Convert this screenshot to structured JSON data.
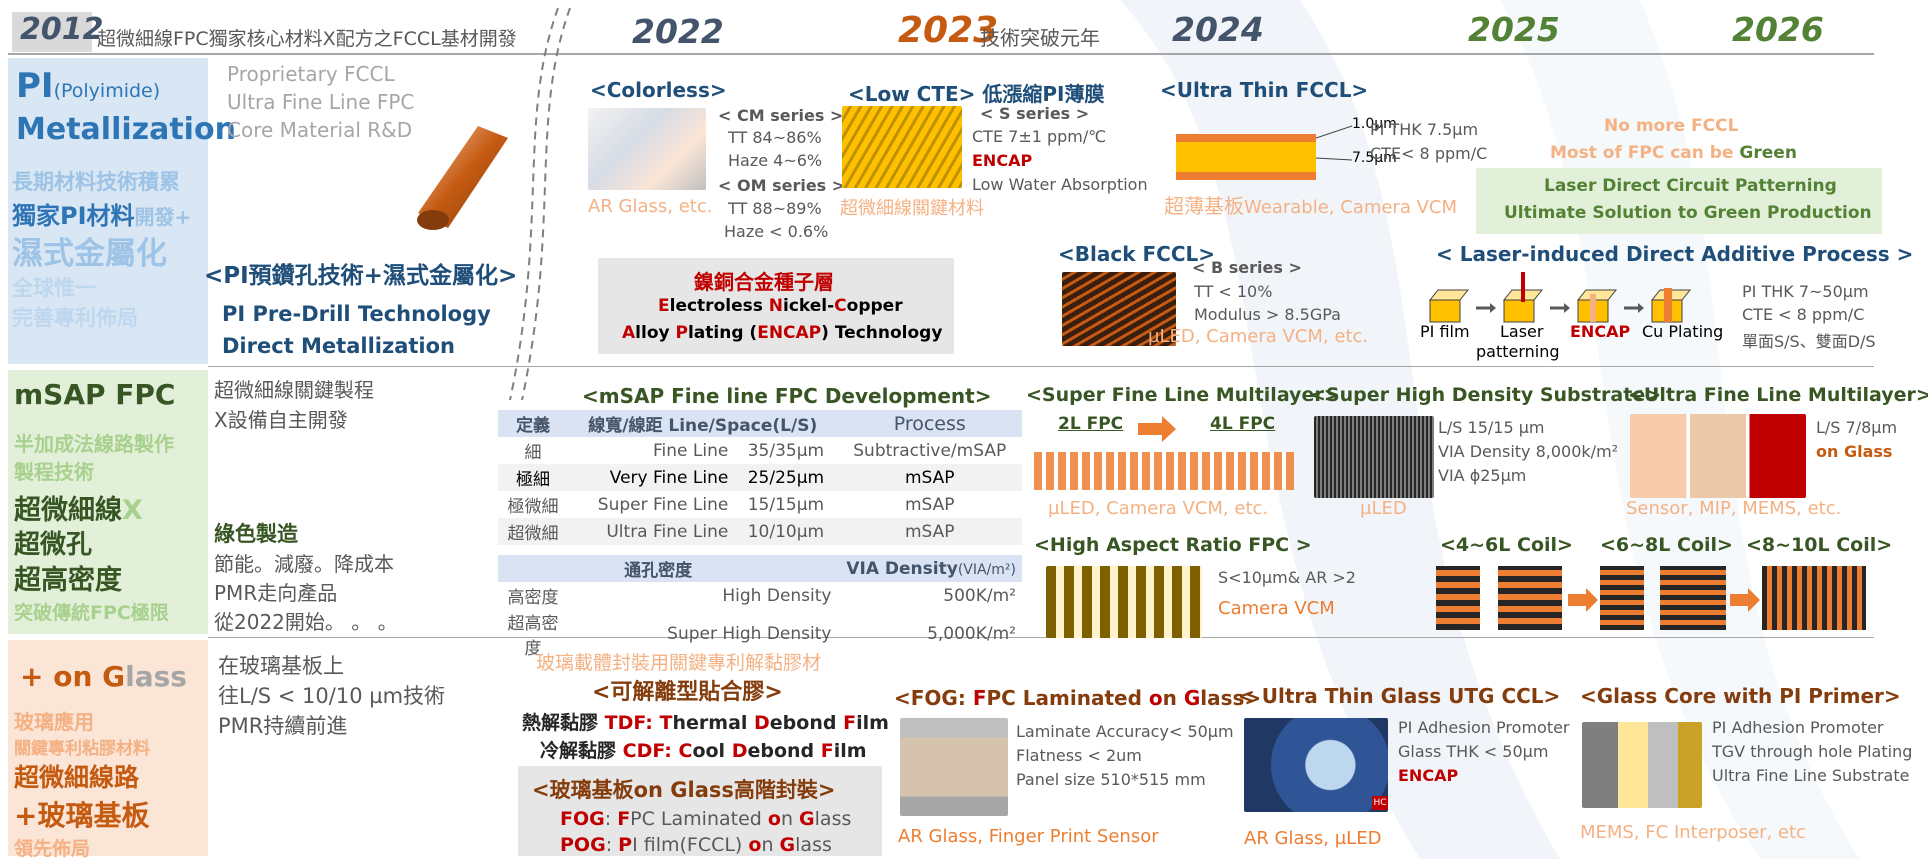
{
  "header": {
    "y2012_year": "2012",
    "y2012_text": "超微細線FPC獨家核心材料X配方之FCCL基材開發",
    "y2022": "2022",
    "y2023": "2023",
    "y2023_suffix": "技術突破元年",
    "y2024": "2024",
    "y2025": "2025",
    "y2026": "2026"
  },
  "pi_band": {
    "title_pi": "PI",
    "title_sub": "(Polyimide)",
    "title_metal": "Metallization",
    "line1": "長期材料技術積累",
    "line2a": "獨家PI材料",
    "line2b": "開發+",
    "line3": "濕式金屬化",
    "line4": "全球惟一",
    "line5": "完善專利佈局",
    "rd1": "Proprietary FCCL",
    "rd2": "Ultra Fine Line FPC",
    "rd3": "Core Material R&D",
    "predrill_title": "<PI預鑽孔技術+濕式金屬化>",
    "predrill_en1": "PI Pre-Drill Technology",
    "predrill_en2": "Direct Metallization"
  },
  "colorless": {
    "title": "<Colorless>",
    "cm": "< CM series >",
    "cm_tt": "TT 84~86%",
    "cm_haze": "Haze 4~6%",
    "om": "< OM series >",
    "om_tt": "TT 88~89%",
    "om_haze": "Haze < 0.6%",
    "note": "AR Glass, etc."
  },
  "low_cte": {
    "title": "<Low CTE>",
    "title_cn": "低漲縮PI薄膜",
    "s": "< S series >",
    "cte": "CTE 7±1 ppm/℃",
    "encap": "ENCAP",
    "lwa": "Low Water Absorption",
    "note": "超微細線關鍵材料"
  },
  "ultra_thin": {
    "title": "<Ultra Thin FCCL>",
    "dim1": "1.0μm",
    "dim2": "7.5μm",
    "pi_thk": "PI THK 7.5μm",
    "cte": "CTE< 8 ppm/C",
    "note_cn": "超薄基板",
    "note_en": "Wearable, Camera VCM"
  },
  "nicu": {
    "title": "鎳銅合金種子層",
    "l1_e": "E",
    "l1_lectroless": "lectroless ",
    "l1_n": "N",
    "l1_ickel": "ickel-",
    "l1_c": "C",
    "l1_opper": "opper",
    "l2_a": "A",
    "l2_lloy": "lloy ",
    "l2_p": "P",
    "l2_lating": "lating  (",
    "l2_encap": "ENCAP",
    "l2_tech": ") Technology"
  },
  "black_fccl": {
    "title": "<Black FCCL>",
    "b": "< B series >",
    "tt": "TT < 10%",
    "modulus": "Modulus > 8.5GPa",
    "note": "µLED, Camera VCM, etc."
  },
  "future": {
    "no_more": "No more FCCL",
    "most_a": "Most of FPC can be ",
    "most_green": "Green",
    "ldcp1": "Laser Direct Circuit Patterning",
    "ldcp2": "Ultimate Solution to Green Production"
  },
  "ldap": {
    "title": "< Laser-induced Direct Additive Process >",
    "step1": "PI film",
    "step2a": "Laser",
    "step2b": "patterning",
    "step3": "ENCAP",
    "step4": "Cu Plating",
    "spec1": "PI THK 7~50µm",
    "spec2": "CTE < 8 ppm/C",
    "spec3": "單面S/S、雙面D/S"
  },
  "msap_band": {
    "title": "mSAP FPC",
    "l1": "半加成法線路製作",
    "l2": "製程技術",
    "l3": "超微細線",
    "l3x": "X",
    "l4": "超微孔",
    "l5": "超高密度",
    "l6": "突破傳統FPC極限",
    "key1": "超微細線關鍵製程",
    "key2": "X設備自主開發",
    "green_title": "綠色製造",
    "green1": "節能。減廢。降成本",
    "green2": "PMR走向產品",
    "green3": "從2022開始。 。 。"
  },
  "msap_table": {
    "title": "<mSAP Fine line FPC Development>",
    "headers": [
      "定義",
      "線寬/線距 Line/Space(L/S)",
      "Process"
    ],
    "rows": [
      [
        "細",
        "Fine Line",
        "35/35μm",
        "Subtractive/mSAP"
      ],
      [
        "極細",
        "Very Fine Line",
        "25/25μm",
        "mSAP"
      ],
      [
        "極微細",
        "Super Fine Line",
        "15/15μm",
        "mSAP"
      ],
      [
        "超微細",
        "Ultra Fine Line",
        "10/10μm",
        "mSAP"
      ]
    ],
    "via_header_cn": "通孔密度",
    "via_header_en": "VIA Density",
    "via_header_unit": "(VIA/m²)",
    "via_rows": [
      [
        "高密度",
        "High Density",
        "500K/m²"
      ],
      [
        "超高密度",
        "Super High Density",
        "5,000K/m²"
      ]
    ]
  },
  "sfl_multilayer": {
    "title": "<Super Fine Line Multilayer>",
    "l2": "2L FPC",
    "l4": "4L FPC",
    "note": "µLED, Camera VCM, etc."
  },
  "shd": {
    "title": "<Super High Density Substrate>",
    "ls": "L/S 15/15 µm",
    "via": "VIA Density 8,000k/m²",
    "phi": "VIA ϕ25µm",
    "note": "µLED"
  },
  "ufl_multilayer": {
    "title": "<Ultra Fine Line Multilayer>",
    "ls": "L/S 7/8µm",
    "glass": "on Glass",
    "note": "Sensor, MIP, MEMS, etc."
  },
  "har": {
    "title": "<High Aspect Ratio FPC >",
    "spec": "S<10µm& AR >2",
    "note": "Camera VCM"
  },
  "coils": {
    "c1": "<4~6L Coil>",
    "c2": "<6~8L Coil>",
    "c3": "<8~10L Coil>"
  },
  "glass_band": {
    "title_a": "+ on G",
    "title_b": "lass",
    "l1": "玻璃應用",
    "l2": "關鍵專利粘膠材料",
    "l3": "超微細線路",
    "l4": "+玻璃基板",
    "l5": "領先佈局",
    "desc1": "在玻璃基板上",
    "desc2": "往L/S < 10/10 µm技術",
    "desc3": "PMR持續前進"
  },
  "adhesive": {
    "top": "玻璃載體封裝用關鍵專利解黏膠材",
    "title": "<可解離型貼合膠>",
    "tdf_cn": "熱解黏膠 ",
    "tdf_code": "TDF: ",
    "tdf_t": "T",
    "tdf_hermal": "hermal ",
    "tdf_d": "D",
    "tdf_ebond": "ebond ",
    "tdf_f": "F",
    "tdf_ilm": "ilm",
    "cdf_cn": "冷解黏膠 ",
    "cdf_code": "CDF: ",
    "cdf_c": "C",
    "cdf_ool": "ool ",
    "cdf_d": "D",
    "cdf_ebond": "ebond ",
    "cdf_f": "F",
    "cdf_ilm": "ilm"
  },
  "glass_pkg": {
    "title": "<玻璃基板on Glass高階封裝>",
    "fog_code": "FOG",
    "fog_colon": ": ",
    "fog_f": "F",
    "fog_pc": "PC Laminated ",
    "fog_o": "o",
    "fog_n": "n ",
    "fog_g": "G",
    "fog_lass": "lass",
    "pog_code": "POG",
    "pog_colon": ": ",
    "pog_p": "P",
    "pog_i": "I film(FCCL) ",
    "pog_o": "o",
    "pog_n": "n ",
    "pog_g": "G",
    "pog_lass": "lass"
  },
  "fog": {
    "title_a": "<FOG: ",
    "title_f": "F",
    "title_pc": "PC Laminated ",
    "title_o": "o",
    "title_n": "n ",
    "title_g": "G",
    "title_lass": "lass>",
    "spec1": "Laminate Accuracy< 50µm",
    "spec2": "Flatness < 2um",
    "spec3": "Panel size 510*515 mm",
    "note": "AR Glass, Finger Print Sensor"
  },
  "utg": {
    "title": "< Ultra Thin Glass UTG CCL>",
    "spec1": "PI Adhesion Promoter",
    "spec2": "Glass THK < 50µm",
    "spec3": "ENCAP",
    "note": "AR Glass, µLED",
    "badge": "HC"
  },
  "glass_core": {
    "title": "<Glass Core with PI Primer>",
    "spec1": "PI Adhesion Promoter",
    "spec2": "TGV through hole Plating",
    "spec3": "Ultra Fine Line Substrate",
    "note": "MEMS, FC Interposer, etc"
  }
}
